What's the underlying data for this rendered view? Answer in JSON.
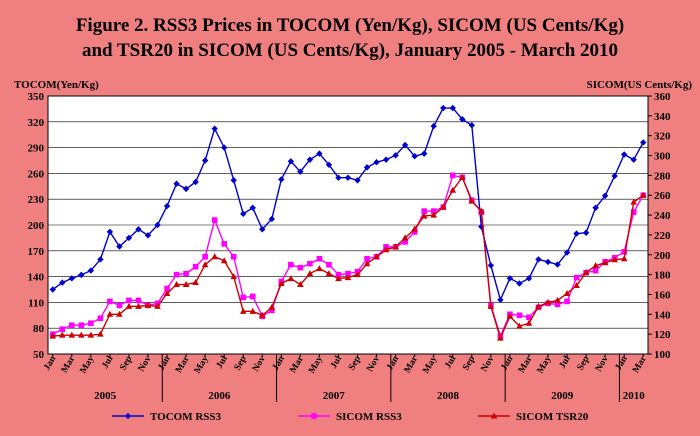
{
  "title_line1": "Figure 2.  RSS3 Prices in TOCOM (Yen/Kg), SICOM (US Cents/Kg)",
  "title_line2": "and TSR20 in SICOM (US Cents/Kg), January 2005 - March 2010",
  "colors": {
    "background": "#f08080",
    "plot_bg": "#ffffff",
    "tocom": "#0000cc",
    "sicom_rss3": "#ff00ff",
    "sicom_tsr20": "#cc0000",
    "grid": "#000000"
  },
  "chart_data": {
    "type": "line",
    "ylabel": "TOCOM(Yen/Kg)",
    "ylabel_right": "SICOM(US Cents/Kg)",
    "ylim": [
      50,
      350
    ],
    "yticks": [
      50,
      80,
      110,
      140,
      170,
      200,
      230,
      260,
      290,
      320,
      350
    ],
    "ylim_right": [
      100,
      360
    ],
    "yticks_right": [
      100,
      120,
      140,
      160,
      180,
      200,
      220,
      240,
      260,
      280,
      300,
      320,
      340,
      360
    ],
    "grid": "horizontal",
    "legend_position": "bottom",
    "x_tick_labels": [
      "Jan",
      "Mar",
      "May",
      "Jul",
      "Sep",
      "Nov",
      "Jan",
      "Mar",
      "May",
      "Jul",
      "Sep",
      "Nov",
      "Jan",
      "Mar",
      "May",
      "Jul",
      "Sep",
      "Nov",
      "Jan",
      "Mar",
      "May",
      "Jul",
      "Sep",
      "Nov",
      "Jan",
      "Mar",
      "May",
      "Jul",
      "Sep",
      "Nov",
      "Jan",
      "Mar"
    ],
    "year_labels": [
      "2005",
      "2006",
      "2007",
      "2008",
      "2009",
      "2010"
    ],
    "x": [
      "2005-01",
      "2005-02",
      "2005-03",
      "2005-04",
      "2005-05",
      "2005-06",
      "2005-07",
      "2005-08",
      "2005-09",
      "2005-10",
      "2005-11",
      "2005-12",
      "2006-01",
      "2006-02",
      "2006-03",
      "2006-04",
      "2006-05",
      "2006-06",
      "2006-07",
      "2006-08",
      "2006-09",
      "2006-10",
      "2006-11",
      "2006-12",
      "2007-01",
      "2007-02",
      "2007-03",
      "2007-04",
      "2007-05",
      "2007-06",
      "2007-07",
      "2007-08",
      "2007-09",
      "2007-10",
      "2007-11",
      "2007-12",
      "2008-01",
      "2008-02",
      "2008-03",
      "2008-04",
      "2008-05",
      "2008-06",
      "2008-07",
      "2008-08",
      "2008-09",
      "2008-10",
      "2008-11",
      "2008-12",
      "2009-01",
      "2009-02",
      "2009-03",
      "2009-04",
      "2009-05",
      "2009-06",
      "2009-07",
      "2009-08",
      "2009-09",
      "2009-10",
      "2009-11",
      "2009-12",
      "2010-01",
      "2010-02",
      "2010-03"
    ],
    "series": [
      {
        "name": "TOCOM RSS3",
        "axis": "left",
        "marker": "diamond",
        "values": [
          125,
          133,
          138,
          142,
          147,
          160,
          192,
          175,
          185,
          195,
          188,
          200,
          222,
          248,
          242,
          250,
          275,
          312,
          290,
          252,
          213,
          220,
          195,
          207,
          253,
          274,
          262,
          276,
          283,
          270,
          255,
          255,
          252,
          267,
          273,
          276,
          281,
          293,
          280,
          283,
          315,
          336,
          336,
          323,
          316,
          198,
          153,
          113,
          138,
          132,
          138,
          160,
          157,
          154,
          168,
          190,
          191,
          220,
          234,
          257,
          282,
          276,
          296
        ]
      },
      {
        "name": "SICOM RSS3",
        "axis": "right",
        "marker": "square",
        "values": [
          120,
          125,
          129,
          129,
          131,
          136,
          153,
          149,
          154,
          154,
          149,
          151,
          166,
          180,
          181,
          188,
          198,
          235,
          211,
          198,
          157,
          158,
          138,
          144,
          173,
          190,
          187,
          191,
          196,
          190,
          180,
          181,
          183,
          196,
          198,
          208,
          208,
          213,
          223,
          244,
          244,
          248,
          280,
          278,
          255,
          243,
          149,
          118,
          140,
          139,
          137,
          147,
          151,
          150,
          153,
          177,
          182,
          184,
          193,
          197,
          203,
          243,
          260
        ]
      },
      {
        "name": "SICOM TSR20",
        "axis": "right",
        "marker": "triangle",
        "values": [
          118,
          119,
          119,
          119,
          119,
          120,
          140,
          140,
          148,
          148,
          149,
          148,
          161,
          170,
          170,
          172,
          190,
          198,
          194,
          178,
          143,
          143,
          139,
          147,
          171,
          176,
          170,
          181,
          186,
          181,
          176,
          177,
          180,
          191,
          198,
          205,
          208,
          217,
          226,
          239,
          240,
          248,
          265,
          278,
          254,
          244,
          148,
          116,
          138,
          128,
          131,
          148,
          152,
          154,
          161,
          169,
          182,
          189,
          192,
          195,
          196,
          253,
          260
        ]
      }
    ]
  }
}
